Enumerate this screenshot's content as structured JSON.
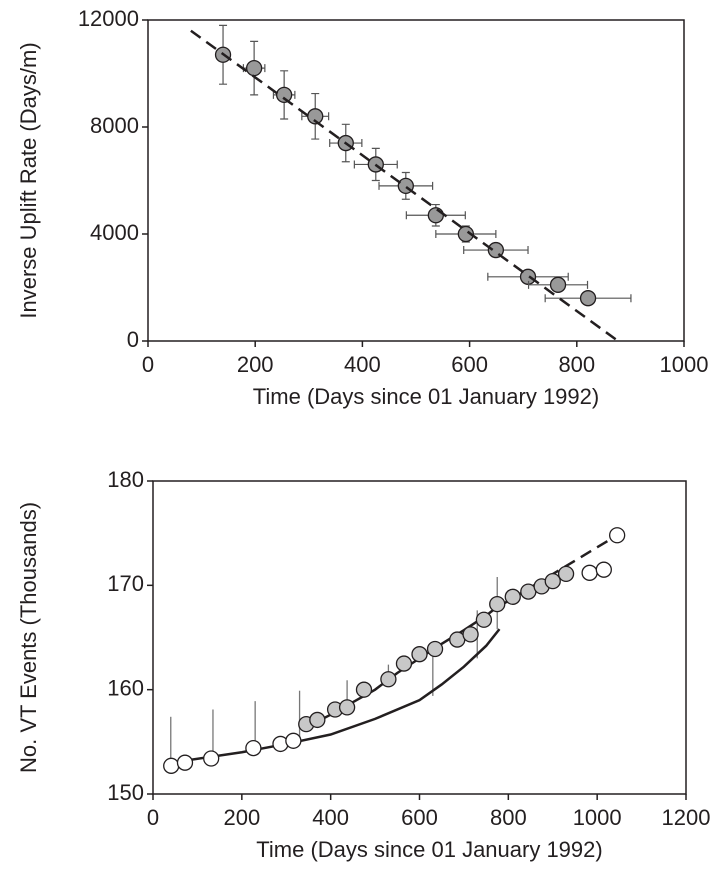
{
  "chart_data": [
    {
      "type": "scatter",
      "x_label": "Time  (Days since 01 January 1992)",
      "y_label": "Inverse Uplift Rate  (Days/m)",
      "xlim": [
        0,
        1000
      ],
      "xticks": [
        0,
        200,
        400,
        600,
        800,
        1000
      ],
      "ylim": [
        0,
        12000
      ],
      "yticks": [
        0,
        4000,
        8000,
        12000
      ],
      "series": [
        {
          "mode": "markers",
          "marker": "filled",
          "color": "#999999",
          "x": [
            140,
            198,
            254,
            312,
            369,
            425,
            481,
            537,
            593,
            649,
            709,
            765,
            821
          ],
          "values": [
            10700,
            10200,
            9200,
            8400,
            7400,
            6600,
            5800,
            4700,
            4000,
            3400,
            2400,
            2100,
            1600
          ],
          "yerr": [
            1100,
            1000,
            900,
            850,
            700,
            600,
            500,
            400,
            300,
            250,
            150,
            100,
            80
          ],
          "xerr": [
            0,
            20,
            20,
            25,
            30,
            40,
            50,
            55,
            56,
            60,
            75,
            55,
            80
          ]
        },
        {
          "mode": "line",
          "dash": true,
          "color": "#231f20",
          "x": [
            80,
            877
          ],
          "values": [
            11600,
            0
          ]
        }
      ]
    },
    {
      "type": "scatter",
      "x_label": "Time  (Days since 01 January 1992)",
      "y_label": "No. VT Events  (Thousands)",
      "xlim": [
        0,
        1200
      ],
      "xticks": [
        0,
        200,
        400,
        600,
        800,
        1000,
        1200
      ],
      "ylim": [
        150,
        180
      ],
      "yticks": [
        150,
        160,
        170,
        180
      ],
      "series": [
        {
          "mode": "errorbars",
          "color": "#777777",
          "x": [
            40,
            135,
            230,
            330,
            437,
            530,
            630,
            730,
            775
          ],
          "low": [
            153,
            153.3,
            154.4,
            155.1,
            158.3,
            161,
            159.4,
            163,
            165.8
          ],
          "high": [
            157.4,
            158.1,
            158.9,
            159.9,
            160.9,
            162.4,
            164,
            167.6,
            170.8
          ]
        },
        {
          "mode": "line",
          "dash": false,
          "color": "#231f20",
          "x": [
            40,
            200,
            300,
            400,
            500,
            600,
            650,
            700,
            750,
            780
          ],
          "values": [
            153,
            154,
            154.8,
            155.7,
            157.2,
            159,
            160.5,
            162.2,
            164.2,
            165.8
          ]
        },
        {
          "mode": "line",
          "dash": false,
          "color": "#231f20",
          "x": [
            340,
            400,
            450,
            500,
            550,
            600,
            650,
            700,
            750,
            780
          ],
          "values": [
            156.3,
            157.6,
            158.8,
            160,
            161.6,
            163,
            164.4,
            165.7,
            167.1,
            168.1
          ]
        },
        {
          "mode": "line",
          "dash": true,
          "color": "#231f20",
          "x": [
            780,
            1045
          ],
          "values": [
            168,
            174.8
          ]
        },
        {
          "mode": "markers",
          "marker": "open",
          "color": "#ffffff",
          "x": [
            41,
            72,
            131,
            226,
            287,
            316,
            983,
            1015,
            1045
          ],
          "values": [
            152.7,
            153,
            153.4,
            154.4,
            154.8,
            155.1,
            171.2,
            171.5,
            174.8
          ]
        },
        {
          "mode": "markers",
          "marker": "filled",
          "color": "#c8c8c8",
          "x": [
            345,
            370,
            410,
            437,
            475,
            530,
            565,
            600,
            635,
            685,
            715,
            745,
            775,
            810,
            845,
            875,
            900,
            930
          ],
          "values": [
            156.7,
            157.1,
            158.1,
            158.3,
            160,
            161,
            162.5,
            163.4,
            163.9,
            164.8,
            165.3,
            166.7,
            168.2,
            168.9,
            169.4,
            169.9,
            170.4,
            171.1
          ]
        }
      ]
    }
  ]
}
